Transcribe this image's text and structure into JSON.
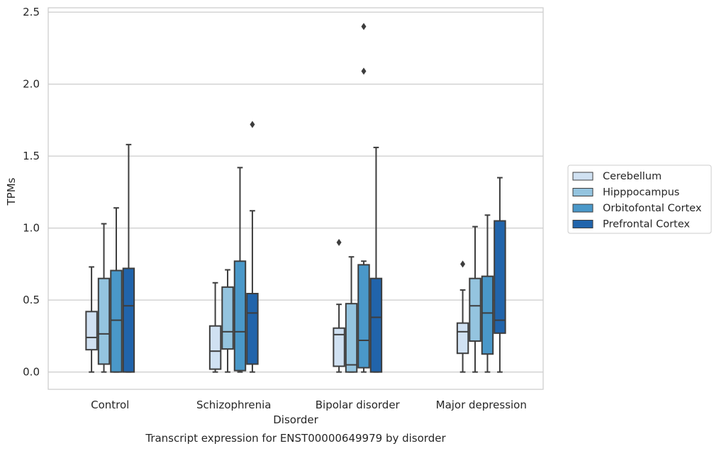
{
  "chart_data": {
    "type": "box",
    "caption": "Transcript expression for ENST00000649979 by disorder",
    "xlabel": "Disorder",
    "ylabel": "TPMs",
    "ylim": [
      -0.12,
      2.53
    ],
    "yticks": [
      0.0,
      0.5,
      1.0,
      1.5,
      2.0,
      2.5
    ],
    "ytick_labels": [
      "0.0",
      "0.5",
      "1.0",
      "1.5",
      "2.0",
      "2.5"
    ],
    "grid": "horizontal",
    "legend_position": "right",
    "categories": [
      "Control",
      "Schizophrenia",
      "Bipolar disorder",
      "Major depression"
    ],
    "series": [
      {
        "name": "Cerebellum",
        "color": "#d0e1f2",
        "boxes": [
          {
            "whislo": 0.0,
            "q1": 0.155,
            "med": 0.24,
            "q3": 0.42,
            "whishi": 0.73,
            "fliers": []
          },
          {
            "whislo": 0.0,
            "q1": 0.02,
            "med": 0.145,
            "q3": 0.32,
            "whishi": 0.62,
            "fliers": []
          },
          {
            "whislo": 0.0,
            "q1": 0.04,
            "med": 0.26,
            "q3": 0.305,
            "whishi": 0.47,
            "fliers": [
              0.9
            ]
          },
          {
            "whislo": 0.0,
            "q1": 0.13,
            "med": 0.28,
            "q3": 0.34,
            "whishi": 0.57,
            "fliers": [
              0.75
            ]
          }
        ]
      },
      {
        "name": "Hipppocampus",
        "color": "#94c4df",
        "boxes": [
          {
            "whislo": 0.0,
            "q1": 0.055,
            "med": 0.265,
            "q3": 0.65,
            "whishi": 1.03,
            "fliers": []
          },
          {
            "whislo": 0.0,
            "q1": 0.16,
            "med": 0.28,
            "q3": 0.59,
            "whishi": 0.71,
            "fliers": []
          },
          {
            "whislo": 0.0,
            "q1": 0.0,
            "med": 0.05,
            "q3": 0.475,
            "whishi": 0.8,
            "fliers": []
          },
          {
            "whislo": 0.0,
            "q1": 0.215,
            "med": 0.46,
            "q3": 0.65,
            "whishi": 1.01,
            "fliers": []
          }
        ]
      },
      {
        "name": "Orbitofontal Cortex",
        "color": "#4a98c9",
        "boxes": [
          {
            "whislo": 0.0,
            "q1": 0.0,
            "med": 0.36,
            "q3": 0.705,
            "whishi": 1.14,
            "fliers": []
          },
          {
            "whislo": 0.0,
            "q1": 0.01,
            "med": 0.28,
            "q3": 0.77,
            "whishi": 1.42,
            "fliers": []
          },
          {
            "whislo": 0.0,
            "q1": 0.03,
            "med": 0.22,
            "q3": 0.745,
            "whishi": 0.77,
            "fliers": [
              2.09,
              2.4
            ]
          },
          {
            "whislo": 0.0,
            "q1": 0.125,
            "med": 0.41,
            "q3": 0.665,
            "whishi": 1.09,
            "fliers": []
          }
        ]
      },
      {
        "name": "Prefrontal Cortex",
        "color": "#2164ab",
        "boxes": [
          {
            "whislo": 0.0,
            "q1": 0.0,
            "med": 0.46,
            "q3": 0.72,
            "whishi": 1.58,
            "fliers": []
          },
          {
            "whislo": 0.0,
            "q1": 0.055,
            "med": 0.41,
            "q3": 0.545,
            "whishi": 1.12,
            "fliers": [
              1.72
            ]
          },
          {
            "whislo": 0.0,
            "q1": 0.0,
            "med": 0.38,
            "q3": 0.65,
            "whishi": 1.56,
            "fliers": []
          },
          {
            "whislo": 0.0,
            "q1": 0.27,
            "med": 0.36,
            "q3": 1.05,
            "whishi": 1.35,
            "fliers": []
          }
        ]
      }
    ]
  }
}
